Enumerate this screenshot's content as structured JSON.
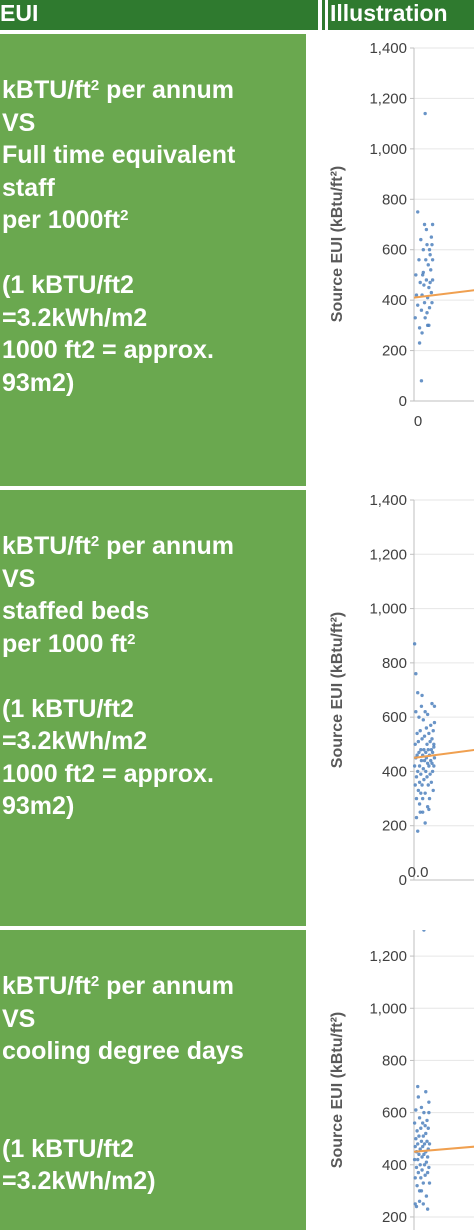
{
  "header": {
    "col_eui": "EUI",
    "col_illustration": "Illustration"
  },
  "rows": [
    {
      "text_lines": [
        "kBTU/ft2 per annum",
        "VS",
        "Full time equivalent",
        "staff",
        "per 1000ft2",
        "",
        "(1 kBTU/ft2",
        "=3.2kWh/m2",
        "1000 ft2 = approx.",
        "93m2)"
      ]
    },
    {
      "text_lines": [
        "kBTU/ft2 per annum",
        "VS",
        "staffed beds",
        "per 1000 ft2",
        "",
        "(1 kBTU/ft2",
        "=3.2kWh/m2",
        "1000 ft2 = approx.",
        "93m2)"
      ]
    },
    {
      "text_lines": [
        "kBTU/ft2 per annum",
        "VS",
        "cooling degree days",
        "",
        "",
        "(1 kBTU/ft2",
        "=3.2kWh/m2)"
      ]
    }
  ],
  "colors": {
    "header_green": "#2f7a2f",
    "cell_green": "#6aa84f",
    "point_blue": "#4f81bd",
    "trend_orange": "#f0a050"
  },
  "chart_data": [
    {
      "type": "scatter",
      "ylabel": "Source EUI (kBtu/ft²)",
      "ylim": [
        0,
        1400
      ],
      "yticks": [
        "0",
        "200",
        "400",
        "600",
        "800",
        "1,000",
        "1,200",
        "1,400"
      ],
      "xticks": [
        "0"
      ],
      "xlim": [
        0,
        10
      ],
      "grid": true,
      "trend": {
        "x": [
          0,
          10
        ],
        "y": [
          410,
          440
        ]
      },
      "points": [
        [
          0.2,
          330
        ],
        [
          0.3,
          500
        ],
        [
          0.4,
          420
        ],
        [
          0.6,
          750
        ],
        [
          0.6,
          380
        ],
        [
          0.8,
          560
        ],
        [
          0.9,
          290
        ],
        [
          1.0,
          470
        ],
        [
          1.1,
          640
        ],
        [
          1.2,
          360
        ],
        [
          1.3,
          420
        ],
        [
          1.3,
          270
        ],
        [
          1.5,
          600
        ],
        [
          1.5,
          510
        ],
        [
          1.6,
          460
        ],
        [
          1.7,
          700
        ],
        [
          1.7,
          390
        ],
        [
          1.8,
          330
        ],
        [
          1.9,
          560
        ],
        [
          2.0,
          680
        ],
        [
          2.0,
          480
        ],
        [
          2.1,
          620
        ],
        [
          2.2,
          410
        ],
        [
          2.2,
          300
        ],
        [
          2.3,
          540
        ],
        [
          2.4,
          450
        ],
        [
          2.5,
          600
        ],
        [
          2.5,
          370
        ],
        [
          2.6,
          470
        ],
        [
          2.7,
          520
        ],
        [
          2.8,
          650
        ],
        [
          2.8,
          430
        ],
        [
          2.9,
          390
        ],
        [
          3.0,
          560
        ],
        [
          3.0,
          480
        ],
        [
          1.8,
          1140
        ],
        [
          1.2,
          80
        ],
        [
          0.9,
          230
        ],
        [
          2.4,
          300
        ],
        [
          1.4,
          500
        ],
        [
          2.6,
          580
        ],
        [
          3.0,
          700
        ],
        [
          2.1,
          350
        ],
        [
          2.9,
          620
        ]
      ]
    },
    {
      "type": "scatter",
      "ylabel": "Source EUI (kBtu/ft²)",
      "ylim": [
        0,
        1400
      ],
      "yticks": [
        "0",
        "200",
        "400",
        "600",
        "800",
        "1,000",
        "1,200",
        "1,400"
      ],
      "xticks": [
        "0.0"
      ],
      "xlim": [
        0,
        10
      ],
      "grid": true,
      "trend": {
        "x": [
          0,
          10
        ],
        "y": [
          450,
          480
        ]
      },
      "points": [
        [
          0.1,
          420
        ],
        [
          0.1,
          870
        ],
        [
          0.2,
          350
        ],
        [
          0.2,
          500
        ],
        [
          0.3,
          450
        ],
        [
          0.3,
          620
        ],
        [
          0.4,
          380
        ],
        [
          0.4,
          300
        ],
        [
          0.5,
          540
        ],
        [
          0.5,
          460
        ],
        [
          0.6,
          690
        ],
        [
          0.6,
          400
        ],
        [
          0.7,
          330
        ],
        [
          0.7,
          510
        ],
        [
          0.8,
          470
        ],
        [
          0.8,
          600
        ],
        [
          0.9,
          420
        ],
        [
          0.9,
          360
        ],
        [
          1.0,
          550
        ],
        [
          1.0,
          250
        ],
        [
          1.1,
          480
        ],
        [
          1.1,
          390
        ],
        [
          1.2,
          640
        ],
        [
          1.2,
          440
        ],
        [
          1.3,
          350
        ],
        [
          1.3,
          520
        ],
        [
          1.4,
          460
        ],
        [
          1.4,
          300
        ],
        [
          1.5,
          590
        ],
        [
          1.5,
          410
        ],
        [
          1.6,
          480
        ],
        [
          1.6,
          370
        ],
        [
          1.7,
          530
        ],
        [
          1.7,
          440
        ],
        [
          1.8,
          620
        ],
        [
          1.8,
          320
        ],
        [
          1.9,
          470
        ],
        [
          1.9,
          400
        ],
        [
          2.0,
          560
        ],
        [
          2.0,
          450
        ],
        [
          2.1,
          380
        ],
        [
          2.1,
          500
        ],
        [
          2.2,
          430
        ],
        [
          2.2,
          610
        ],
        [
          2.3,
          350
        ],
        [
          2.3,
          480
        ],
        [
          2.4,
          540
        ],
        [
          2.4,
          420
        ],
        [
          2.5,
          460
        ],
        [
          2.5,
          300
        ],
        [
          2.6,
          510
        ],
        [
          2.6,
          390
        ],
        [
          2.7,
          570
        ],
        [
          2.7,
          440
        ],
        [
          2.8,
          480
        ],
        [
          2.8,
          360
        ],
        [
          2.9,
          520
        ],
        [
          2.9,
          430
        ],
        [
          3.0,
          470
        ],
        [
          3.0,
          400
        ],
        [
          3.1,
          550
        ],
        [
          3.1,
          330
        ],
        [
          3.2,
          490
        ],
        [
          3.2,
          420
        ],
        [
          3.3,
          580
        ],
        [
          3.3,
          450
        ],
        [
          0.4,
          230
        ],
        [
          0.9,
          280
        ],
        [
          1.4,
          250
        ],
        [
          2.2,
          270
        ],
        [
          0.3,
          760
        ],
        [
          0.6,
          180
        ],
        [
          1.3,
          680
        ],
        [
          1.8,
          210
        ],
        [
          2.9,
          650
        ],
        [
          2.4,
          260
        ],
        [
          3.3,
          640
        ],
        [
          1.1,
          320
        ],
        [
          3.2,
          500
        ]
      ]
    },
    {
      "type": "scatter",
      "ylabel": "Source EUI (kBtu/ft²)",
      "ylim": [
        150,
        1300
      ],
      "yticks": [
        "200",
        "400",
        "600",
        "800",
        "1,000",
        "1,200"
      ],
      "xticks": [],
      "xlim": [
        0,
        10
      ],
      "grid": true,
      "trend": {
        "x": [
          0,
          10
        ],
        "y": [
          450,
          470
        ]
      },
      "points": [
        [
          0.1,
          420
        ],
        [
          0.1,
          560
        ],
        [
          0.2,
          470
        ],
        [
          0.2,
          350
        ],
        [
          0.3,
          500
        ],
        [
          0.3,
          610
        ],
        [
          0.4,
          390
        ],
        [
          0.4,
          450
        ],
        [
          0.5,
          530
        ],
        [
          0.5,
          320
        ],
        [
          0.6,
          480
        ],
        [
          0.6,
          420
        ],
        [
          0.7,
          660
        ],
        [
          0.7,
          370
        ],
        [
          0.8,
          510
        ],
        [
          0.8,
          440
        ],
        [
          0.9,
          580
        ],
        [
          0.9,
          300
        ],
        [
          1.0,
          460
        ],
        [
          1.0,
          400
        ],
        [
          1.1,
          540
        ],
        [
          1.1,
          350
        ],
        [
          1.2,
          490
        ],
        [
          1.2,
          620
        ],
        [
          1.3,
          430
        ],
        [
          1.3,
          380
        ],
        [
          1.4,
          560
        ],
        [
          1.4,
          470
        ],
        [
          1.5,
          330
        ],
        [
          1.5,
          510
        ],
        [
          1.6,
          440
        ],
        [
          1.6,
          600
        ],
        [
          1.7,
          400
        ],
        [
          1.7,
          480
        ],
        [
          1.8,
          360
        ],
        [
          1.8,
          550
        ],
        [
          1.9,
          450
        ],
        [
          1.9,
          520
        ],
        [
          2.0,
          410
        ],
        [
          2.0,
          280
        ],
        [
          2.1,
          490
        ],
        [
          2.1,
          570
        ],
        [
          2.2,
          430
        ],
        [
          2.2,
          370
        ],
        [
          2.3,
          540
        ],
        [
          2.3,
          460
        ],
        [
          2.4,
          600
        ],
        [
          2.4,
          390
        ],
        [
          2.5,
          480
        ],
        [
          2.5,
          330
        ],
        [
          0.4,
          240
        ],
        [
          0.9,
          260
        ],
        [
          1.5,
          250
        ],
        [
          2.2,
          230
        ],
        [
          1.6,
          1300
        ],
        [
          0.6,
          700
        ],
        [
          1.9,
          680
        ],
        [
          2.4,
          640
        ],
        [
          0.2,
          250
        ],
        [
          1.2,
          300
        ]
      ]
    }
  ]
}
